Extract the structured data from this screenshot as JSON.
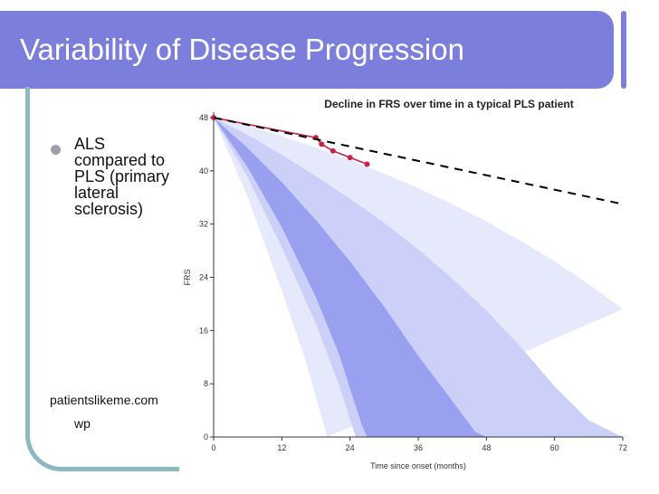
{
  "slide": {
    "title": "Variability of Disease Progression",
    "bullet": "ALS\ncompared to\nPLS (primary\nlateral\nsclerosis)",
    "source": "patientslikeme.com",
    "source_suffix": "wp"
  },
  "colors": {
    "title_bg": "#7b7fdb",
    "frame": "#8db8c0",
    "band_outer": "#e6e9fb",
    "band_mid": "#ccd0f9",
    "band_inner": "#9aa0f0",
    "patient": "#cc1f45",
    "trend": "#000000"
  },
  "chart_data": {
    "type": "line",
    "title": "Decline in FRS over time in a typical PLS patient",
    "xlabel": "Time since onset (months)",
    "ylabel": "FRS",
    "xlim": [
      0,
      72
    ],
    "ylim": [
      0,
      48
    ],
    "xticks": [
      0,
      12,
      24,
      36,
      48,
      60,
      72
    ],
    "yticks": [
      0,
      8,
      16,
      24,
      32,
      40,
      48
    ],
    "grid": false,
    "bands": [
      {
        "name": "outer",
        "upper": [
          [
            0,
            48
          ],
          [
            6,
            46.8
          ],
          [
            12,
            45.2
          ],
          [
            18,
            43.5
          ],
          [
            24,
            41.6
          ],
          [
            30,
            39.6
          ],
          [
            36,
            37.4
          ],
          [
            42,
            35
          ],
          [
            48,
            32.4
          ],
          [
            54,
            29.5
          ],
          [
            60,
            26.4
          ],
          [
            66,
            23
          ],
          [
            72,
            19.2
          ]
        ],
        "lower": [
          [
            0,
            48
          ],
          [
            6,
            36
          ],
          [
            12,
            22
          ],
          [
            16,
            12
          ],
          [
            18,
            6
          ],
          [
            20,
            0
          ]
        ]
      },
      {
        "name": "mid",
        "upper": [
          [
            0,
            48
          ],
          [
            6,
            45.4
          ],
          [
            12,
            42.4
          ],
          [
            18,
            39.2
          ],
          [
            24,
            35.8
          ],
          [
            30,
            32.2
          ],
          [
            36,
            28.2
          ],
          [
            42,
            23.8
          ],
          [
            48,
            19
          ],
          [
            54,
            13.6
          ],
          [
            60,
            7.6
          ],
          [
            66,
            2.5
          ],
          [
            72,
            0
          ]
        ],
        "lower": [
          [
            0,
            48
          ],
          [
            6,
            39
          ],
          [
            12,
            28.5
          ],
          [
            18,
            17
          ],
          [
            22,
            8
          ],
          [
            25,
            0
          ]
        ]
      },
      {
        "name": "inner",
        "upper": [
          [
            0,
            48
          ],
          [
            6,
            43.4
          ],
          [
            12,
            38.3
          ],
          [
            18,
            32.6
          ],
          [
            24,
            26.4
          ],
          [
            30,
            19.6
          ],
          [
            36,
            12.2
          ],
          [
            42,
            5.4
          ],
          [
            46,
            0.8
          ],
          [
            48,
            0
          ]
        ],
        "lower": [
          [
            0,
            48
          ],
          [
            6,
            40.5
          ],
          [
            12,
            31.5
          ],
          [
            18,
            21
          ],
          [
            22,
            12.6
          ],
          [
            26,
            2
          ],
          [
            27,
            0
          ]
        ]
      }
    ],
    "series": [
      {
        "name": "patient",
        "x": [
          0,
          18,
          19,
          21,
          24,
          27
        ],
        "y": [
          48,
          45,
          44,
          43,
          42,
          41
        ]
      },
      {
        "name": "trend",
        "x": [
          0,
          72
        ],
        "y": [
          48,
          35
        ]
      }
    ]
  }
}
